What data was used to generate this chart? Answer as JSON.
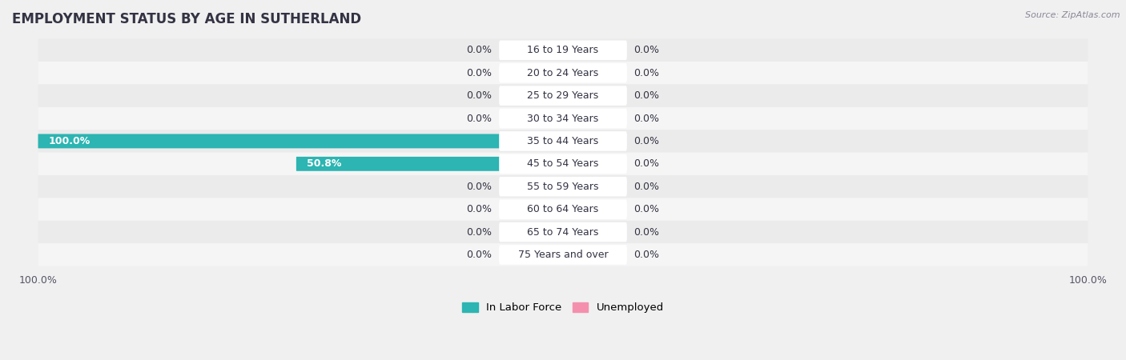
{
  "title": "EMPLOYMENT STATUS BY AGE IN SUTHERLAND",
  "source": "Source: ZipAtlas.com",
  "categories": [
    "16 to 19 Years",
    "20 to 24 Years",
    "25 to 29 Years",
    "30 to 34 Years",
    "35 to 44 Years",
    "45 to 54 Years",
    "55 to 59 Years",
    "60 to 64 Years",
    "65 to 74 Years",
    "75 Years and over"
  ],
  "labor_force": [
    0.0,
    0.0,
    0.0,
    0.0,
    100.0,
    50.8,
    0.0,
    0.0,
    0.0,
    0.0
  ],
  "unemployed": [
    0.0,
    0.0,
    0.0,
    0.0,
    0.0,
    0.0,
    0.0,
    0.0,
    0.0,
    0.0
  ],
  "labor_force_color_full": "#2cb5b2",
  "labor_force_color_stub": "#7ecece",
  "unemployed_color": "#f490ae",
  "unemployed_color_stub": "#f4aec0",
  "row_bg_odd": "#ebebeb",
  "row_bg_even": "#f5f5f5",
  "bg_color": "#f0f0f0",
  "label_bg": "#ffffff",
  "label_color": "#333344",
  "value_color_dark": "#333344",
  "value_color_white": "#ffffff",
  "axis_scale": 100,
  "stub_size": 12.0,
  "legend_labor": "In Labor Force",
  "legend_unemployed": "Unemployed",
  "title_fontsize": 12,
  "label_fontsize": 9,
  "tick_fontsize": 9,
  "source_fontsize": 8
}
